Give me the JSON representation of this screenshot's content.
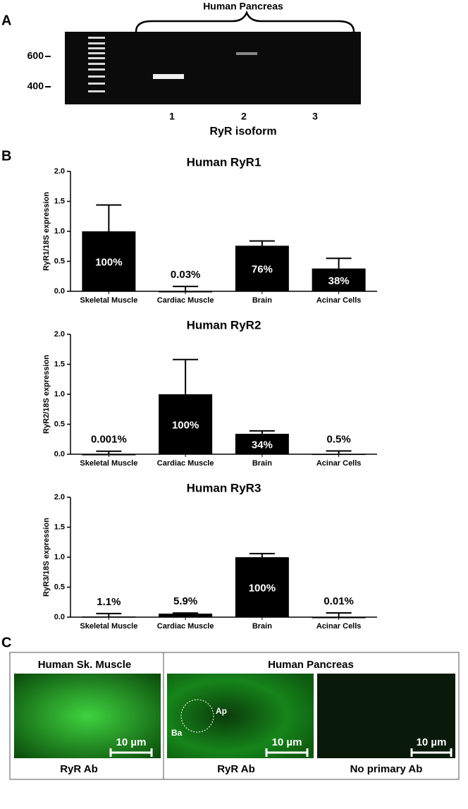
{
  "panel_a": {
    "letter": "A",
    "title": "Human Pancreas",
    "markers": [
      "600",
      "400"
    ],
    "lanes": [
      "1",
      "2",
      "3"
    ],
    "x_label": "RyR isoform"
  },
  "panel_b": {
    "letter": "B"
  },
  "chart_data": [
    {
      "type": "bar",
      "title": "Human RyR1",
      "y_label": "RyR1/18S expression",
      "color": "#000000",
      "categories": [
        "Skeletal Muscle",
        "Cardiac Muscle",
        "Brain",
        "Acinar Cells"
      ],
      "values": [
        1.0,
        0.0003,
        0.76,
        0.38
      ],
      "value_labels": [
        "100%",
        "0.03%",
        "76%",
        "38%"
      ],
      "errors": [
        0.44,
        0.08,
        0.08,
        0.17
      ],
      "ylim": [
        0,
        2
      ],
      "yticks": [
        {
          "value": 0,
          "label": "0.0"
        },
        0.5,
        {
          "value": 1,
          "label": "1.0"
        },
        1.5,
        {
          "value": 2,
          "label": "2.0"
        }
      ]
    },
    {
      "type": "bar",
      "title": "Human RyR2",
      "y_label": "RyR2/18S expression",
      "color": "#000000",
      "categories": [
        "Skeletal Muscle",
        "Cardiac Muscle",
        "Brain",
        "Acinar Cells"
      ],
      "values": [
        1e-05,
        1.0,
        0.34,
        0.005
      ],
      "value_labels": [
        "0.001%",
        "100%",
        "34%",
        "0.5%"
      ],
      "errors": [
        0.05,
        0.58,
        0.05,
        0.05
      ],
      "ylim": [
        0,
        2
      ],
      "yticks": [
        {
          "value": 0,
          "label": "0.0"
        },
        0.5,
        {
          "value": 1,
          "label": "1.0"
        },
        1.5,
        {
          "value": 2,
          "label": "2.0"
        }
      ]
    },
    {
      "type": "bar",
      "title": "Human RyR3",
      "y_label": "RyR3/18S expression",
      "color": "#000000",
      "categories": [
        "Skeletal Muscle",
        "Cardiac Muscle",
        "Brain",
        "Acinar Cells"
      ],
      "values": [
        0.011,
        0.059,
        1.0,
        0.0001
      ],
      "value_labels": [
        "1.1%",
        "5.9%",
        "100%",
        "0.01%"
      ],
      "errors": [
        0.05,
        0.01,
        0.06,
        0.07
      ],
      "ylim": [
        0,
        2
      ],
      "yticks": [
        {
          "value": 0,
          "label": "0.0"
        },
        0.5,
        {
          "value": 1,
          "label": "1.0"
        },
        1.5,
        {
          "value": 2,
          "label": "2.0"
        }
      ]
    }
  ],
  "panel_c": {
    "letter": "C",
    "muscle_title": "Human Sk. Muscle",
    "pancreas_title": "Human Pancreas",
    "captions": [
      "RyR Ab",
      "RyR Ab",
      "No primary Ab"
    ],
    "scale": [
      "10 µm",
      "10 µm",
      "10 µm"
    ],
    "annotations": [
      "Ap",
      "Ba"
    ]
  }
}
